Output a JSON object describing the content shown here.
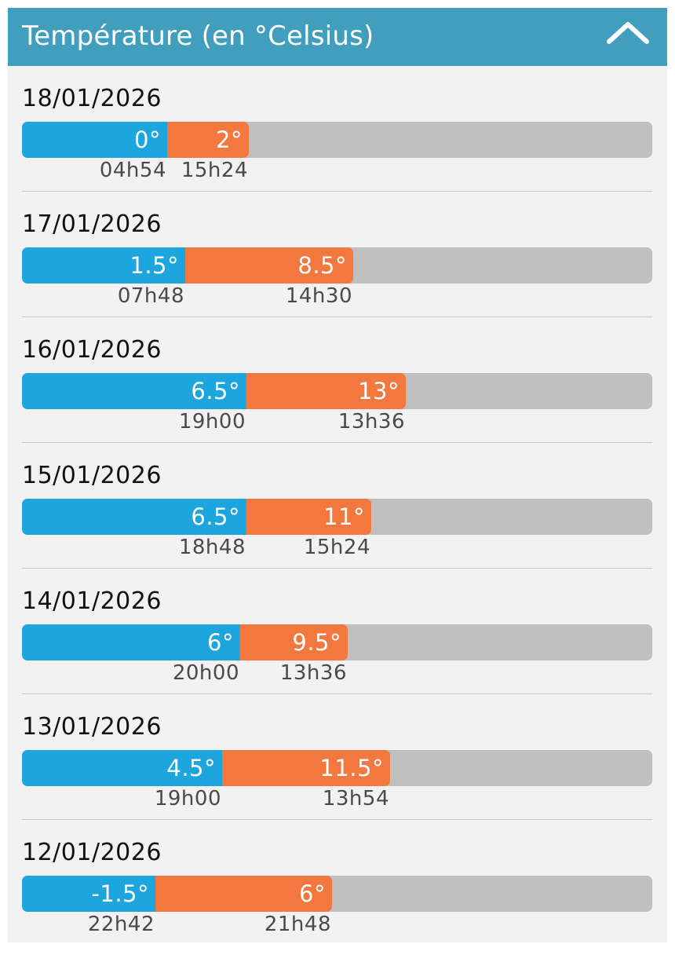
{
  "header": {
    "title": "Température (en °Celsius)",
    "collapse_icon": "chevron-up-icon"
  },
  "colors": {
    "header_bg": "#419fbd",
    "min_bar": "#1da5dd",
    "max_bar": "#f37840",
    "track": "#bfbfbf"
  },
  "chart_data": {
    "type": "bar",
    "unit": "°C",
    "days": [
      {
        "date": "18/01/2026",
        "min_label": "0°",
        "min_value": 0,
        "min_time": "04h54",
        "max_label": "2°",
        "max_value": 2,
        "max_time": "15h24"
      },
      {
        "date": "17/01/2026",
        "min_label": "1.5°",
        "min_value": 1.5,
        "min_time": "07h48",
        "max_label": "8.5°",
        "max_value": 8.5,
        "max_time": "14h30"
      },
      {
        "date": "16/01/2026",
        "min_label": "6.5°",
        "min_value": 6.5,
        "min_time": "19h00",
        "max_label": "13°",
        "max_value": 13,
        "max_time": "13h36"
      },
      {
        "date": "15/01/2026",
        "min_label": "6.5°",
        "min_value": 6.5,
        "min_time": "18h48",
        "max_label": "11°",
        "max_value": 11,
        "max_time": "15h24"
      },
      {
        "date": "14/01/2026",
        "min_label": "6°",
        "min_value": 6,
        "min_time": "20h00",
        "max_label": "9.5°",
        "max_value": 9.5,
        "max_time": "13h36"
      },
      {
        "date": "13/01/2026",
        "min_label": "4.5°",
        "min_value": 4.5,
        "min_time": "19h00",
        "max_label": "11.5°",
        "max_value": 11.5,
        "max_time": "13h54"
      },
      {
        "date": "12/01/2026",
        "min_label": "-1.5°",
        "min_value": -1.5,
        "min_time": "22h42",
        "max_label": "6°",
        "max_value": 6,
        "max_time": "21h48"
      }
    ]
  }
}
